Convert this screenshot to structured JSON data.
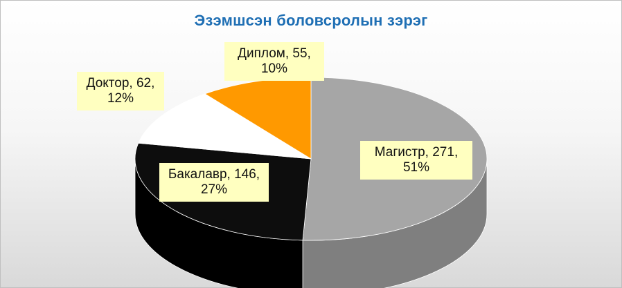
{
  "chart_data": {
    "type": "pie",
    "title": "Эзэмшсэн боловсролын зэрэг",
    "categories": [
      "Магистр",
      "Бакалавр",
      "Доктор",
      "Диплом"
    ],
    "values": [
      271,
      146,
      62,
      55
    ],
    "percents": [
      "51%",
      "27%",
      "12%",
      "10%"
    ],
    "colors": [
      "#a6a6a6",
      "#0d0d0d",
      "#ffffff",
      "#ff9900"
    ],
    "labels": {
      "magistr": {
        "line1": "Магистр, 271,",
        "line2": "51%"
      },
      "bakalavr": {
        "line1": "Бакалавр, 146,",
        "line2": "27%"
      },
      "doktor": {
        "line1": "Доктор, 62,",
        "line2": "12%"
      },
      "diplom": {
        "line1": "Диплом,  55,",
        "line2": "10%"
      }
    },
    "three_d": true
  }
}
